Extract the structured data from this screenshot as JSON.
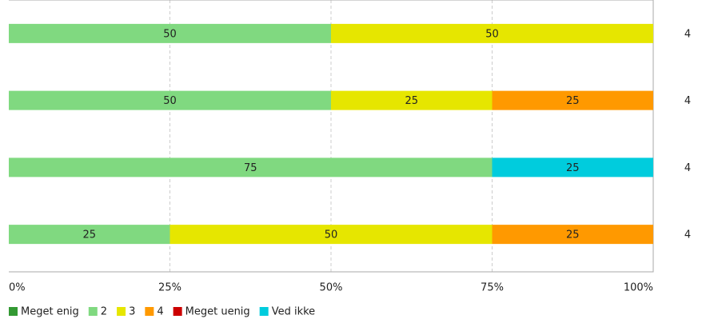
{
  "chart_data": {
    "type": "stacked-bar-horizontal",
    "categories": [
      null,
      null,
      null,
      null
    ],
    "series": [
      {
        "name": "Meget enig",
        "color": "#339933",
        "values": [
          null,
          null,
          null,
          null
        ]
      },
      {
        "name": "2",
        "color": "#80d980",
        "values": [
          50,
          50,
          75,
          25
        ]
      },
      {
        "name": "3",
        "color": "#e6e600",
        "values": [
          50,
          25,
          null,
          50
        ]
      },
      {
        "name": "4",
        "color": "#ff9900",
        "values": [
          null,
          25,
          null,
          25
        ]
      },
      {
        "name": "Meget uenig",
        "color": "#cc0000",
        "values": [
          null,
          null,
          null,
          null
        ]
      },
      {
        "name": "Ved ikke",
        "color": "#00ccdd",
        "values": [
          null,
          null,
          25,
          null
        ]
      }
    ],
    "totals": [
      4,
      4,
      4,
      4
    ],
    "xlim": [
      0,
      100
    ],
    "xticks": [
      {
        "value": 0,
        "label": "0%"
      },
      {
        "value": 25,
        "label": "25%"
      },
      {
        "value": 50,
        "label": "50%"
      },
      {
        "value": 75,
        "label": "75%"
      },
      {
        "value": 100,
        "label": "100%"
      }
    ],
    "grid": true
  }
}
